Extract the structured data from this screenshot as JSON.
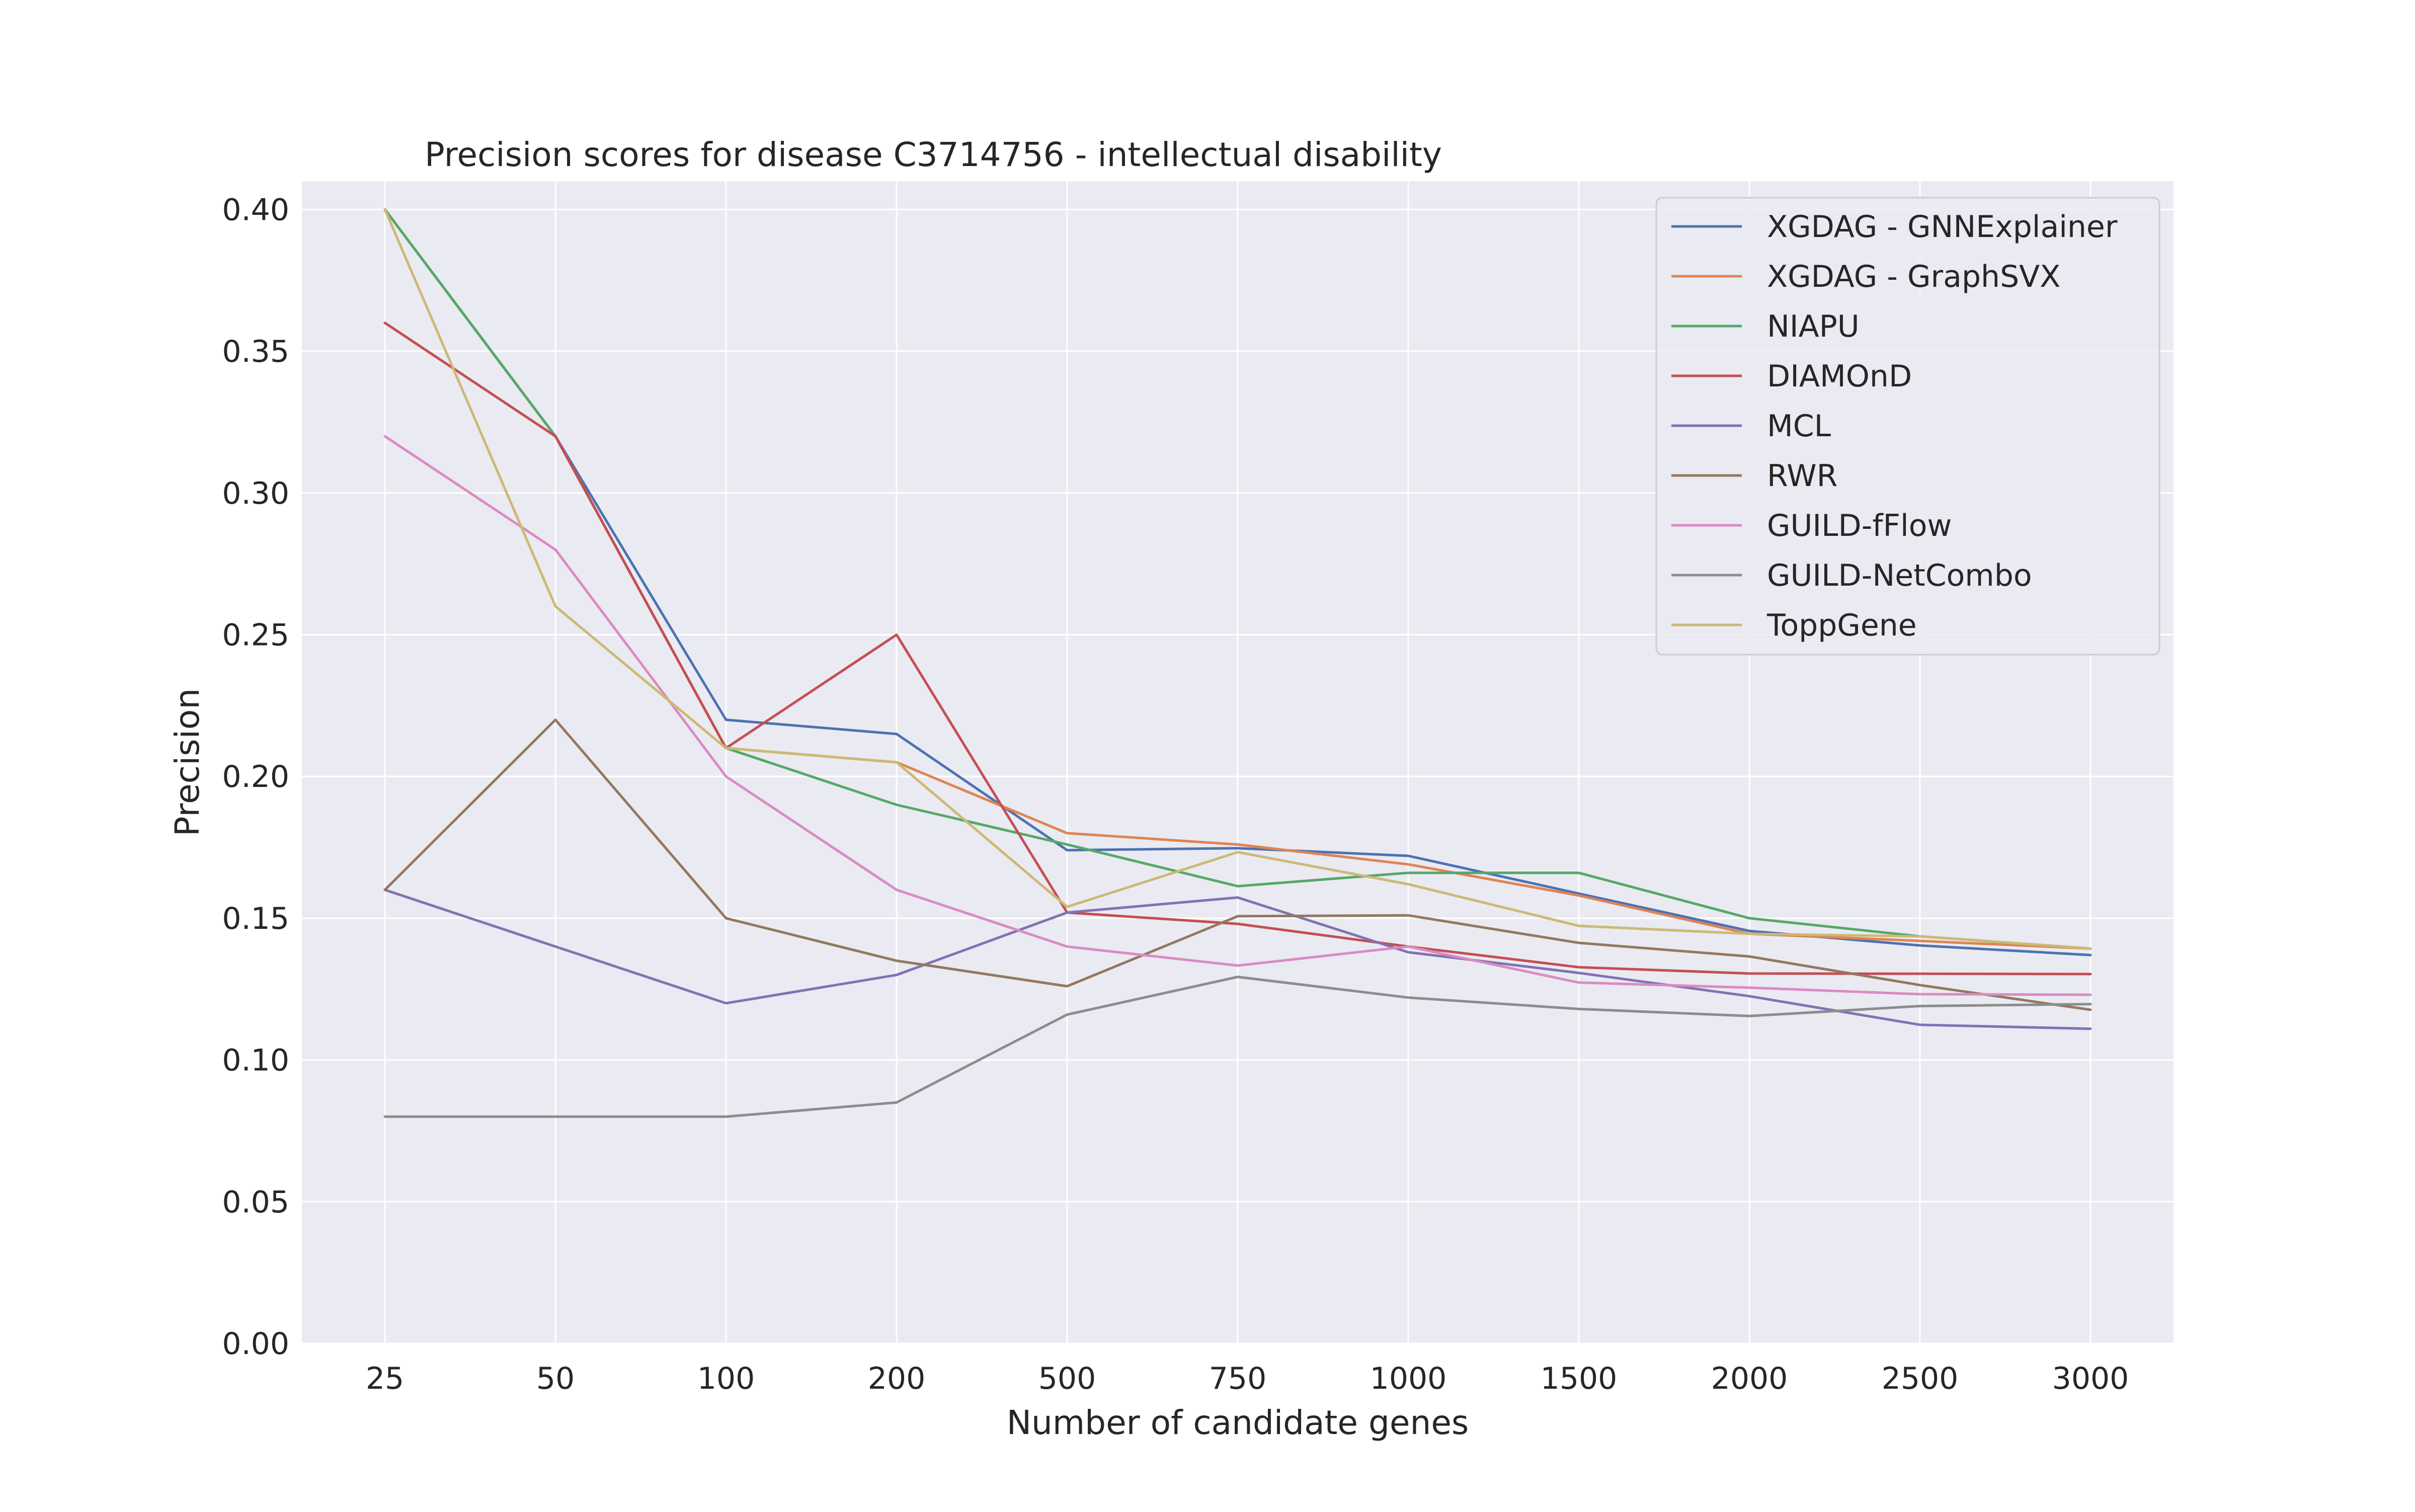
{
  "chart_data": {
    "type": "line",
    "title": "Precision scores for disease C3714756 - intellectual disability",
    "xlabel": "Number of candidate genes",
    "ylabel": "Precision",
    "categories": [
      "25",
      "50",
      "100",
      "200",
      "500",
      "750",
      "1000",
      "1500",
      "2000",
      "2500",
      "3000"
    ],
    "ylim": [
      0,
      0.41
    ],
    "yticks": [
      "0.00",
      "0.05",
      "0.10",
      "0.15",
      "0.20",
      "0.25",
      "0.30",
      "0.35",
      "0.40"
    ],
    "grid": true,
    "legend_position": "top-right",
    "series": [
      {
        "name": "XGDAG - GNNExplainer",
        "color": "#4c72b0",
        "values": [
          0.4,
          0.32,
          0.22,
          0.215,
          0.174,
          0.1747,
          0.172,
          0.1587,
          0.1455,
          0.1404,
          0.137
        ]
      },
      {
        "name": "XGDAG - GraphSVX",
        "color": "#dd8452",
        "values": [
          0.4,
          0.32,
          0.21,
          0.205,
          0.18,
          0.176,
          0.169,
          0.158,
          0.1445,
          0.142,
          0.1393
        ]
      },
      {
        "name": "NIAPU",
        "color": "#55a868",
        "values": [
          0.4,
          0.32,
          0.21,
          0.19,
          0.176,
          0.1613,
          0.166,
          0.166,
          0.15,
          0.1436,
          0.1393
        ]
      },
      {
        "name": "DIAMOnD",
        "color": "#c44e52",
        "values": [
          0.36,
          0.32,
          0.21,
          0.25,
          0.152,
          0.148,
          0.14,
          0.1327,
          0.1305,
          0.1304,
          0.1303
        ]
      },
      {
        "name": "MCL",
        "color": "#8172b3",
        "values": [
          0.16,
          0.14,
          0.12,
          0.13,
          0.152,
          0.1573,
          0.138,
          0.1307,
          0.1225,
          0.1124,
          0.111
        ]
      },
      {
        "name": "RWR",
        "color": "#937860",
        "values": [
          0.16,
          0.22,
          0.15,
          0.135,
          0.126,
          0.1507,
          0.151,
          0.1413,
          0.1365,
          0.1264,
          0.1177
        ]
      },
      {
        "name": "GUILD-fFlow",
        "color": "#da8bc3",
        "values": [
          0.32,
          0.28,
          0.2,
          0.16,
          0.14,
          0.1333,
          0.14,
          0.1273,
          0.1255,
          0.1232,
          0.123
        ]
      },
      {
        "name": "GUILD-NetCombo",
        "color": "#8c8c8c",
        "values": [
          0.08,
          0.08,
          0.08,
          0.085,
          0.116,
          0.1293,
          0.122,
          0.118,
          0.1155,
          0.119,
          0.1197
        ]
      },
      {
        "name": "ToppGene",
        "color": "#ccb974",
        "values": [
          0.4,
          0.26,
          0.21,
          0.205,
          0.154,
          0.1733,
          0.162,
          0.1473,
          0.1445,
          0.1436,
          0.1393
        ]
      }
    ]
  },
  "colors": {
    "plot_background": "#eaeaf2",
    "grid": "#ffffff",
    "text": "#262626"
  }
}
